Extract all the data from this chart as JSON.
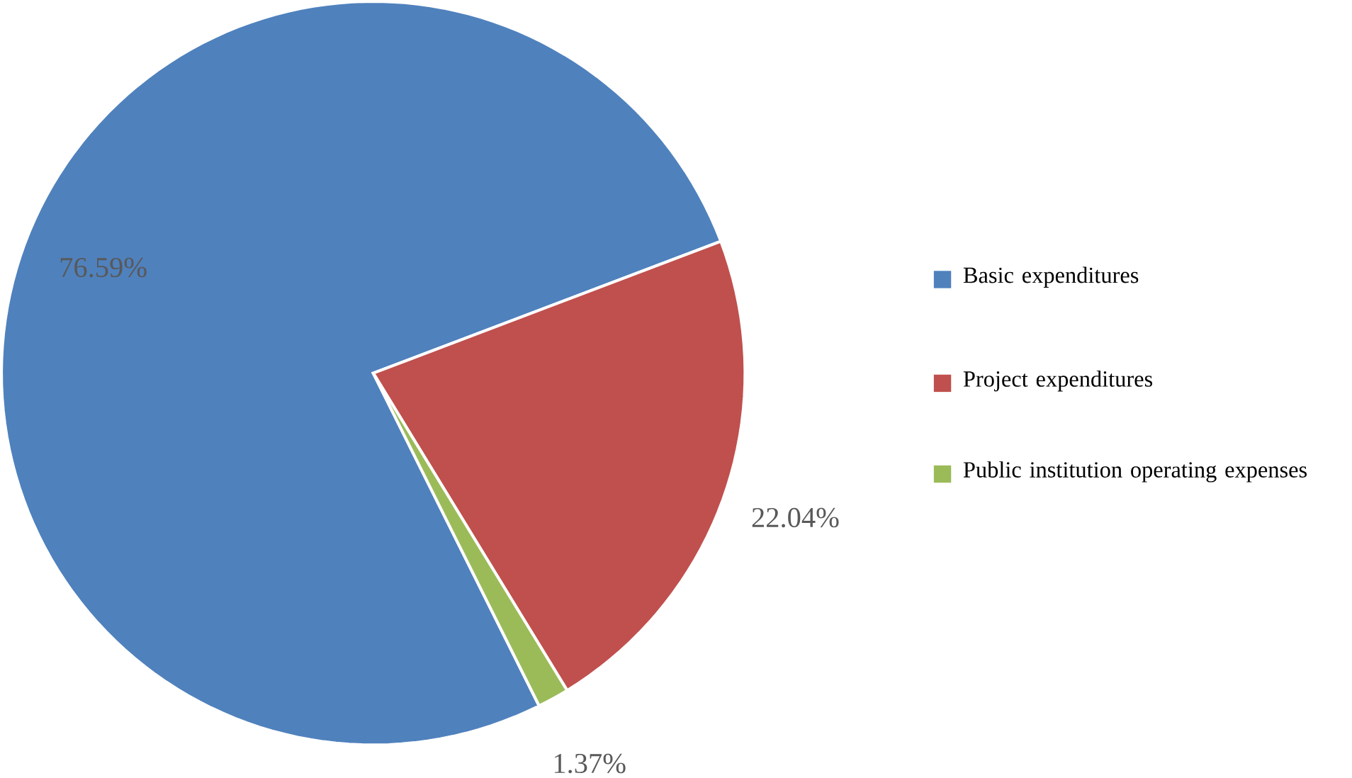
{
  "chart_data": {
    "type": "pie",
    "categories": [
      "Basic expenditures",
      "Project expenditures",
      "Public institution operating expenses"
    ],
    "values": [
      76.59,
      22.04,
      1.37
    ],
    "colors": [
      "#4f81bd",
      "#c0504d",
      "#9bbb59"
    ],
    "value_labels": [
      "76.59%",
      "22.04%",
      "1.37%"
    ],
    "legend": "right"
  }
}
